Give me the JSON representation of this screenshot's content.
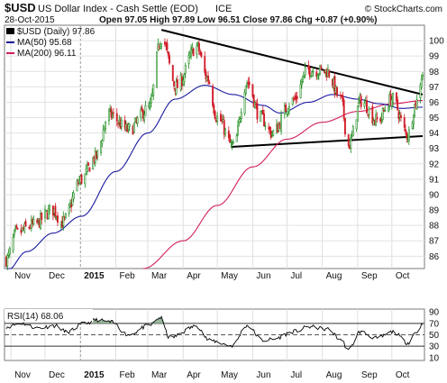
{
  "header": {
    "symbol": "$USD",
    "name": "US Dollar Index - Cash Settle (EOD)",
    "exchange": "ICE",
    "watermark": "© StockCharts.com",
    "date": "28-Oct-2015",
    "ohlc": "Open 97.05  High 97.89  Low 96.51  Close 97.86  Chg +0.87 (+0.90%)",
    "legend": [
      {
        "label": "$USD (Daily) 97.86",
        "color": "#000000"
      },
      {
        "label": "MA(50) 95.68",
        "color": "#1a1aa0"
      },
      {
        "label": "MA(200) 96.11",
        "color": "#d21e5a"
      }
    ]
  },
  "rsi_panel": {
    "label": "RSI(14) 68.06"
  },
  "colors": {
    "up": "#1a8a1a",
    "down": "#d21e2a",
    "ma50": "#1a1aa0",
    "ma200": "#d21e5a",
    "trend": "#000000",
    "rsi_fill": "#9ab99a"
  },
  "chart_data": [
    {
      "type": "candlestick",
      "x_tick_labels": [
        "Nov",
        "Dec",
        "2015",
        "Feb",
        "Mar",
        "Apr",
        "May",
        "Jun",
        "Jul",
        "Aug",
        "Sep",
        "Oct"
      ],
      "y_ticks": [
        86,
        87,
        88,
        89,
        90,
        91,
        92,
        93,
        94,
        95,
        96,
        97,
        98,
        99,
        100
      ],
      "ylim": [
        85.2,
        101
      ],
      "x_anchors": [
        {
          "date": "2014-10-28",
          "close": 85.8
        },
        {
          "date": "2014-11-06",
          "close": 87.5
        },
        {
          "date": "2014-11-20",
          "close": 88.0
        },
        {
          "date": "2014-12-08",
          "close": 89.0
        },
        {
          "date": "2014-12-16",
          "close": 88.2
        },
        {
          "date": "2015-01-02",
          "close": 91.0
        },
        {
          "date": "2015-01-14",
          "close": 92.4
        },
        {
          "date": "2015-01-26",
          "close": 95.2
        },
        {
          "date": "2015-02-12",
          "close": 94.2
        },
        {
          "date": "2015-03-02",
          "close": 95.6
        },
        {
          "date": "2015-03-13",
          "close": 100.2
        },
        {
          "date": "2015-03-26",
          "close": 97.0
        },
        {
          "date": "2015-04-13",
          "close": 99.6
        },
        {
          "date": "2015-04-22",
          "close": 97.6
        },
        {
          "date": "2015-05-01",
          "close": 95.0
        },
        {
          "date": "2015-05-15",
          "close": 93.1
        },
        {
          "date": "2015-05-27",
          "close": 97.3
        },
        {
          "date": "2015-06-08",
          "close": 95.0
        },
        {
          "date": "2015-06-18",
          "close": 94.0
        },
        {
          "date": "2015-07-06",
          "close": 96.1
        },
        {
          "date": "2015-07-20",
          "close": 98.1
        },
        {
          "date": "2015-08-05",
          "close": 98.0
        },
        {
          "date": "2015-08-17",
          "close": 96.2
        },
        {
          "date": "2015-08-24",
          "close": 93.2
        },
        {
          "date": "2015-09-04",
          "close": 96.1
        },
        {
          "date": "2015-09-18",
          "close": 94.8
        },
        {
          "date": "2015-10-01",
          "close": 96.2
        },
        {
          "date": "2015-10-15",
          "close": 93.9
        },
        {
          "date": "2015-10-22",
          "close": 95.9
        },
        {
          "date": "2015-10-28",
          "close": 97.86
        }
      ],
      "ma50": [
        {
          "date": "2014-10-28",
          "value": 85.0
        },
        {
          "date": "2014-11-15",
          "value": 86.3
        },
        {
          "date": "2014-12-08",
          "value": 87.5
        },
        {
          "date": "2015-01-02",
          "value": 88.6
        },
        {
          "date": "2015-02-01",
          "value": 91.5
        },
        {
          "date": "2015-03-01",
          "value": 94.0
        },
        {
          "date": "2015-03-25",
          "value": 96.2
        },
        {
          "date": "2015-04-20",
          "value": 97.1
        },
        {
          "date": "2015-05-15",
          "value": 96.5
        },
        {
          "date": "2015-06-10",
          "value": 95.8
        },
        {
          "date": "2015-06-25",
          "value": 95.3
        },
        {
          "date": "2015-07-20",
          "value": 96.0
        },
        {
          "date": "2015-08-10",
          "value": 96.5
        },
        {
          "date": "2015-09-01",
          "value": 96.2
        },
        {
          "date": "2015-09-20",
          "value": 95.9
        },
        {
          "date": "2015-10-10",
          "value": 95.6
        },
        {
          "date": "2015-10-28",
          "value": 95.68
        }
      ],
      "ma200": [
        {
          "date": "2015-02-25",
          "value": 85.2
        },
        {
          "date": "2015-04-01",
          "value": 87.0
        },
        {
          "date": "2015-05-01",
          "value": 89.3
        },
        {
          "date": "2015-06-01",
          "value": 91.8
        },
        {
          "date": "2015-07-01",
          "value": 93.6
        },
        {
          "date": "2015-08-01",
          "value": 94.7
        },
        {
          "date": "2015-09-01",
          "value": 95.4
        },
        {
          "date": "2015-10-01",
          "value": 95.9
        },
        {
          "date": "2015-10-28",
          "value": 96.11
        }
      ],
      "trendlines": [
        {
          "from": {
            "date": "2015-03-13",
            "value": 100.7
          },
          "to": {
            "date": "2015-10-28",
            "value": 96.5
          }
        },
        {
          "from": {
            "date": "2015-05-13",
            "value": 93.1
          },
          "to": {
            "date": "2015-10-28",
            "value": 93.8
          }
        }
      ]
    },
    {
      "type": "line",
      "name": "RSI(14)",
      "y_ticks": [
        10,
        30,
        50,
        70,
        90
      ],
      "ylim": [
        5,
        95
      ],
      "reference_lines": [
        30,
        50,
        70
      ],
      "x_tick_labels": [
        "Nov",
        "Dec",
        "2015",
        "Feb",
        "Mar",
        "Apr",
        "May",
        "Jun",
        "Jul",
        "Aug",
        "Sep",
        "Oct"
      ],
      "anchors": [
        {
          "date": "2014-10-28",
          "value": 64
        },
        {
          "date": "2014-11-10",
          "value": 70
        },
        {
          "date": "2014-11-25",
          "value": 62
        },
        {
          "date": "2014-12-10",
          "value": 66
        },
        {
          "date": "2014-12-20",
          "value": 55
        },
        {
          "date": "2015-01-05",
          "value": 70
        },
        {
          "date": "2015-01-15",
          "value": 76
        },
        {
          "date": "2015-01-28",
          "value": 72
        },
        {
          "date": "2015-02-12",
          "value": 50
        },
        {
          "date": "2015-03-02",
          "value": 66
        },
        {
          "date": "2015-03-12",
          "value": 80
        },
        {
          "date": "2015-03-20",
          "value": 45
        },
        {
          "date": "2015-04-13",
          "value": 65
        },
        {
          "date": "2015-04-24",
          "value": 40
        },
        {
          "date": "2015-05-14",
          "value": 31
        },
        {
          "date": "2015-05-27",
          "value": 66
        },
        {
          "date": "2015-06-10",
          "value": 40
        },
        {
          "date": "2015-06-18",
          "value": 42
        },
        {
          "date": "2015-07-08",
          "value": 56
        },
        {
          "date": "2015-07-20",
          "value": 64
        },
        {
          "date": "2015-08-06",
          "value": 60
        },
        {
          "date": "2015-08-17",
          "value": 42
        },
        {
          "date": "2015-08-24",
          "value": 24
        },
        {
          "date": "2015-09-03",
          "value": 55
        },
        {
          "date": "2015-09-18",
          "value": 44
        },
        {
          "date": "2015-10-02",
          "value": 55
        },
        {
          "date": "2015-10-15",
          "value": 36
        },
        {
          "date": "2015-10-22",
          "value": 54
        },
        {
          "date": "2015-10-28",
          "value": 68.06
        }
      ]
    }
  ]
}
